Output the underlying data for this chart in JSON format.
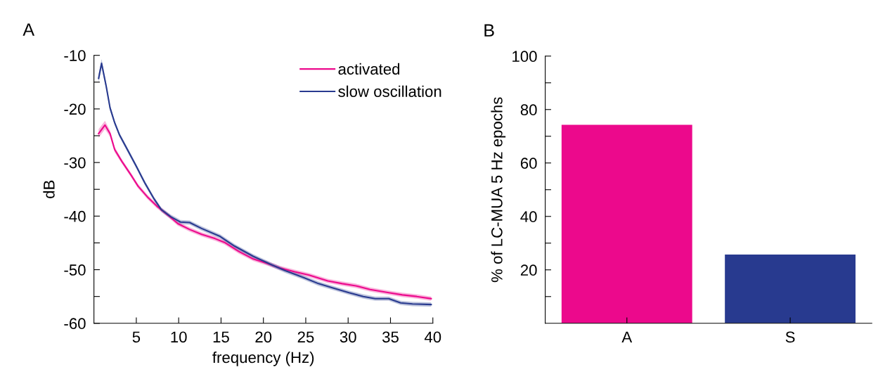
{
  "chart_data": [
    {
      "type": "line",
      "title": "A",
      "xlabel": "frequency (Hz)",
      "ylabel": "dB",
      "xlim": [
        0,
        40
      ],
      "ylim": [
        -60,
        -10
      ],
      "xticks": [
        5,
        10,
        15,
        20,
        25,
        30,
        35,
        40
      ],
      "yticks": [
        -60,
        {
          "value": -55,
          "label": null
        },
        -50,
        {
          "value": -45,
          "label": null
        },
        -40,
        {
          "value": -35,
          "label": null
        },
        -30,
        {
          "value": -25,
          "label": null
        },
        -20,
        {
          "value": -15,
          "label": null
        },
        -10
      ],
      "legend": "top right",
      "grid": false,
      "series": [
        {
          "name": "activated",
          "color": "#ec098c",
          "x": [
            0.55,
            1.3,
            1.9,
            2.45,
            3.3,
            4.4,
            5.2,
            6.3,
            7.4,
            8.8,
            9.9,
            11.3,
            12.7,
            14.3,
            15.4,
            17.1,
            18.8,
            20.4,
            22.0,
            23.7,
            25.4,
            27.6,
            29.3,
            30.9,
            32.6,
            34.8,
            36.4,
            38.1,
            39.8
          ],
          "values": [
            -24.6,
            -23.0,
            -24.6,
            -27.6,
            -29.8,
            -32.4,
            -34.4,
            -36.4,
            -38.1,
            -39.9,
            -41.4,
            -42.5,
            -43.4,
            -44.2,
            -44.9,
            -46.6,
            -48.0,
            -48.8,
            -49.7,
            -50.4,
            -51.0,
            -52.1,
            -52.6,
            -53.0,
            -53.7,
            -54.3,
            -54.7,
            -55.0,
            -55.4
          ],
          "lower": [
            -25.4,
            -23.8,
            -25.2,
            -28.1,
            -30.2,
            -32.8,
            -34.8,
            -36.8,
            -38.5,
            -40.3,
            -41.8,
            -42.9,
            -43.8,
            -44.6,
            -45.3,
            -47.0,
            -48.4,
            -49.2,
            -50.1,
            -50.8,
            -51.4,
            -52.5,
            -53.0,
            -53.4,
            -54.1,
            -54.7,
            -55.1,
            -55.4,
            -55.8
          ],
          "upper": [
            -23.8,
            -22.2,
            -24.0,
            -27.1,
            -29.4,
            -32.0,
            -34.0,
            -36.0,
            -37.7,
            -39.5,
            -41.0,
            -42.1,
            -43.0,
            -43.8,
            -44.5,
            -46.2,
            -47.6,
            -48.4,
            -49.3,
            -50.0,
            -50.6,
            -51.7,
            -52.2,
            -52.6,
            -53.3,
            -53.9,
            -54.3,
            -54.6,
            -55.0
          ]
        },
        {
          "name": "slow oscillation",
          "color": "#283a8f",
          "x": [
            0.55,
            0.9,
            1.45,
            1.9,
            2.45,
            3.0,
            3.95,
            5.0,
            6.0,
            7.1,
            7.95,
            9.05,
            10.2,
            11.3,
            12.7,
            14.9,
            16.6,
            18.8,
            21.0,
            22.6,
            24.8,
            26.5,
            28.2,
            30.1,
            31.8,
            33.2,
            34.8,
            36.2,
            37.6,
            39.8
          ],
          "values": [
            -14.3,
            -11.5,
            -15.8,
            -19.8,
            -22.6,
            -24.8,
            -27.6,
            -30.7,
            -33.8,
            -36.8,
            -38.8,
            -40.1,
            -41.1,
            -41.2,
            -42.3,
            -43.8,
            -45.6,
            -47.5,
            -49.1,
            -50.2,
            -51.5,
            -52.6,
            -53.4,
            -54.3,
            -55.0,
            -55.4,
            -55.4,
            -56.2,
            -56.4,
            -56.5
          ],
          "lower": [
            -15.1,
            -12.3,
            -16.4,
            -20.3,
            -23.0,
            -25.2,
            -28.0,
            -31.1,
            -34.2,
            -37.2,
            -39.2,
            -40.5,
            -41.5,
            -41.6,
            -42.7,
            -44.2,
            -46.0,
            -47.9,
            -49.5,
            -50.6,
            -51.9,
            -53.0,
            -53.8,
            -54.7,
            -55.4,
            -55.8,
            -55.8,
            -56.6,
            -56.8,
            -56.9
          ],
          "upper": [
            -13.5,
            -10.7,
            -15.2,
            -19.3,
            -22.2,
            -24.4,
            -27.2,
            -30.3,
            -33.4,
            -36.4,
            -38.4,
            -39.7,
            -40.7,
            -40.8,
            -41.9,
            -43.4,
            -45.2,
            -47.1,
            -48.7,
            -49.8,
            -51.1,
            -52.2,
            -53.0,
            -53.9,
            -54.6,
            -55.0,
            -55.0,
            -55.8,
            -56.0,
            -56.1
          ]
        }
      ]
    },
    {
      "type": "bar",
      "title": "B",
      "ylabel": "% of LC-MUA 5 Hz epochs",
      "categories": [
        "A",
        "S"
      ],
      "values": [
        74.3,
        25.7
      ],
      "colors": [
        "#ec098c",
        "#283a8f"
      ],
      "ylim": [
        0,
        100
      ],
      "yticks": [
        {
          "value": 10,
          "label": null
        },
        20,
        {
          "value": 30,
          "label": null
        },
        40,
        {
          "value": 50,
          "label": null
        },
        60,
        {
          "value": 70,
          "label": null
        },
        80,
        {
          "value": 90,
          "label": null
        },
        100
      ],
      "grid": false
    }
  ]
}
